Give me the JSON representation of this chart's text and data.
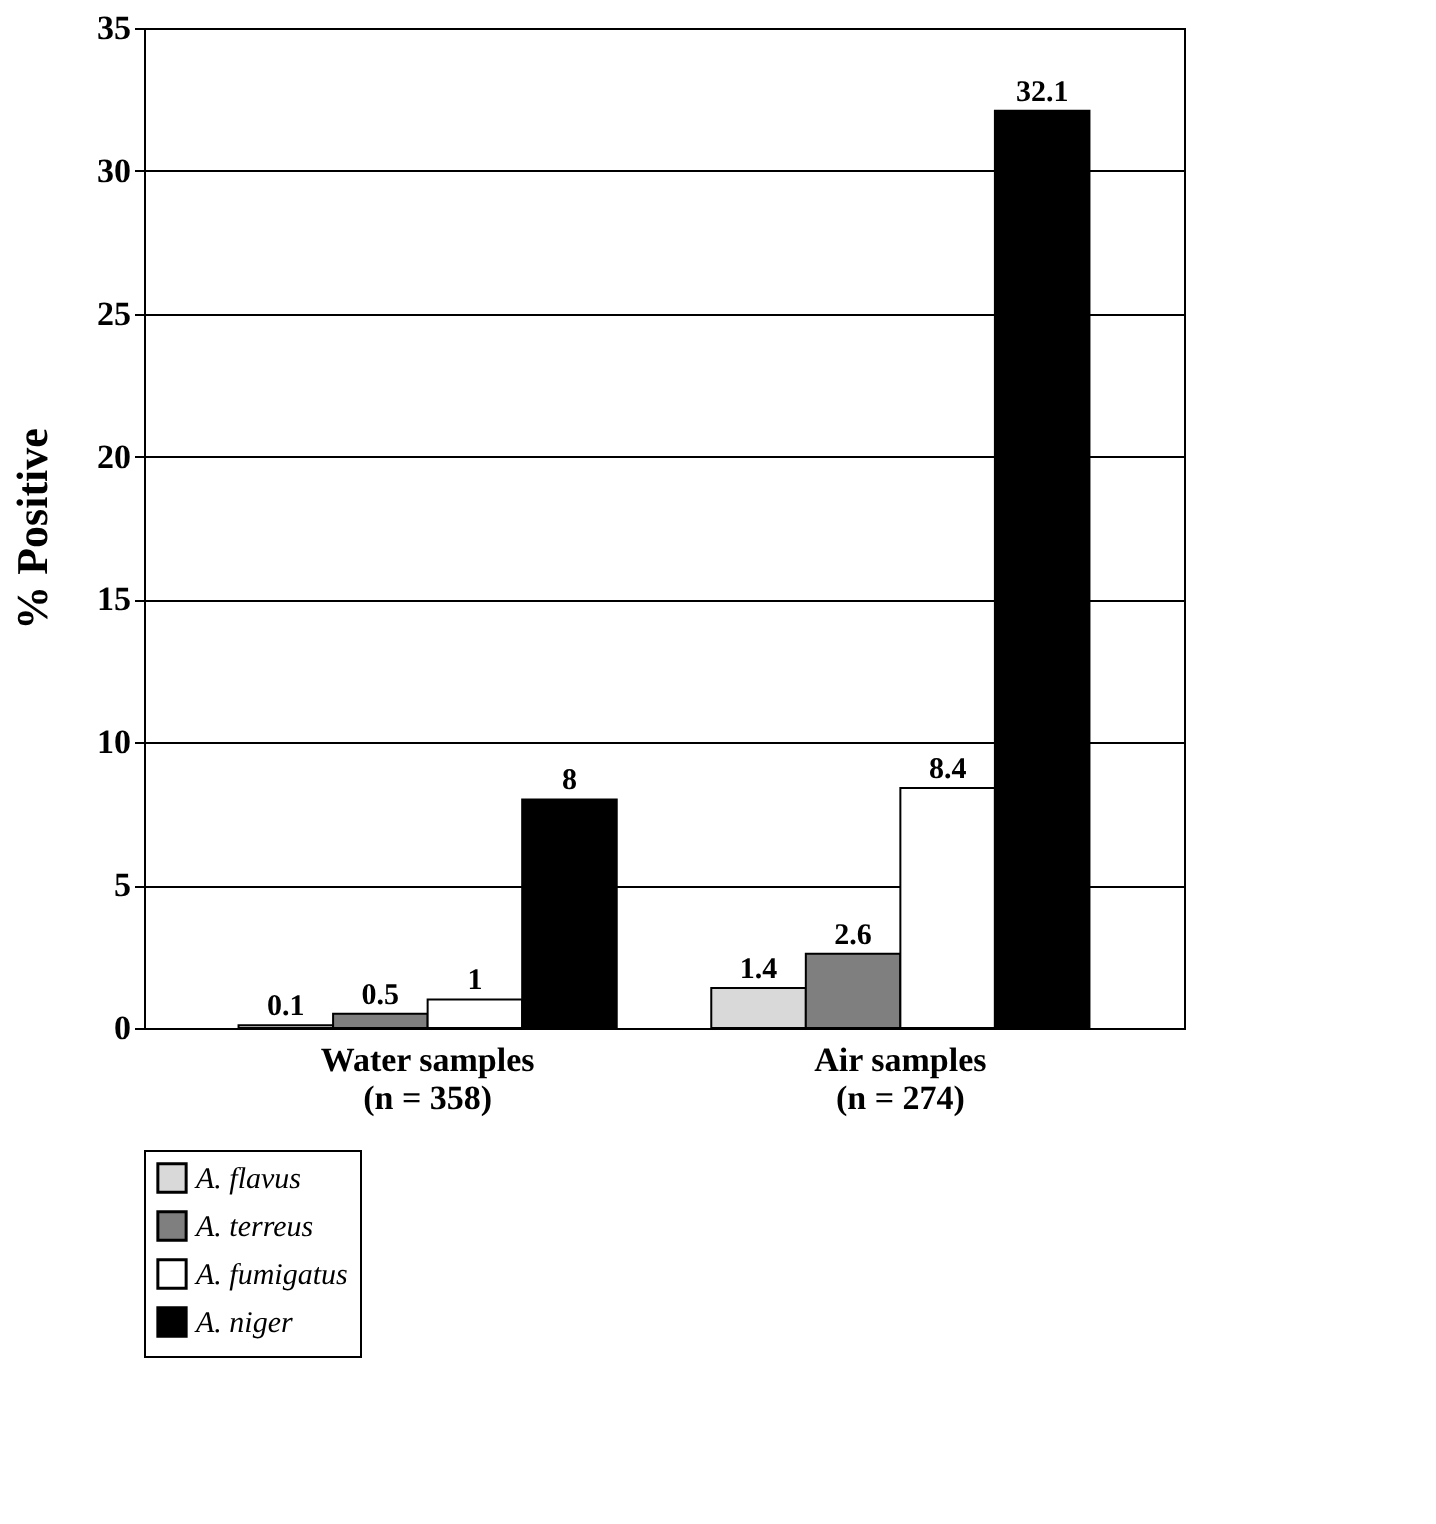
{
  "chart_data": {
    "type": "bar",
    "ylabel": "% Positive",
    "categories": [
      "Water samples\n(n = 358)",
      "Air samples\n(n = 274)"
    ],
    "series": [
      {
        "name": "A. flavus",
        "color": "#d9d9d9",
        "values": [
          0.1,
          1.4
        ]
      },
      {
        "name": "A. terreus",
        "color": "#7f7f7f",
        "values": [
          0.5,
          2.6
        ]
      },
      {
        "name": "A. fumigatus",
        "color": "#ffffff",
        "values": [
          1,
          8.4
        ]
      },
      {
        "name": "A. niger",
        "color": "#000000",
        "values": [
          8,
          32.1
        ]
      }
    ],
    "ylim": [
      0,
      35
    ],
    "yticks": [
      0,
      5,
      10,
      15,
      20,
      25,
      30,
      35
    ],
    "grid": "y",
    "legend": "bottom",
    "data_labels": true
  }
}
